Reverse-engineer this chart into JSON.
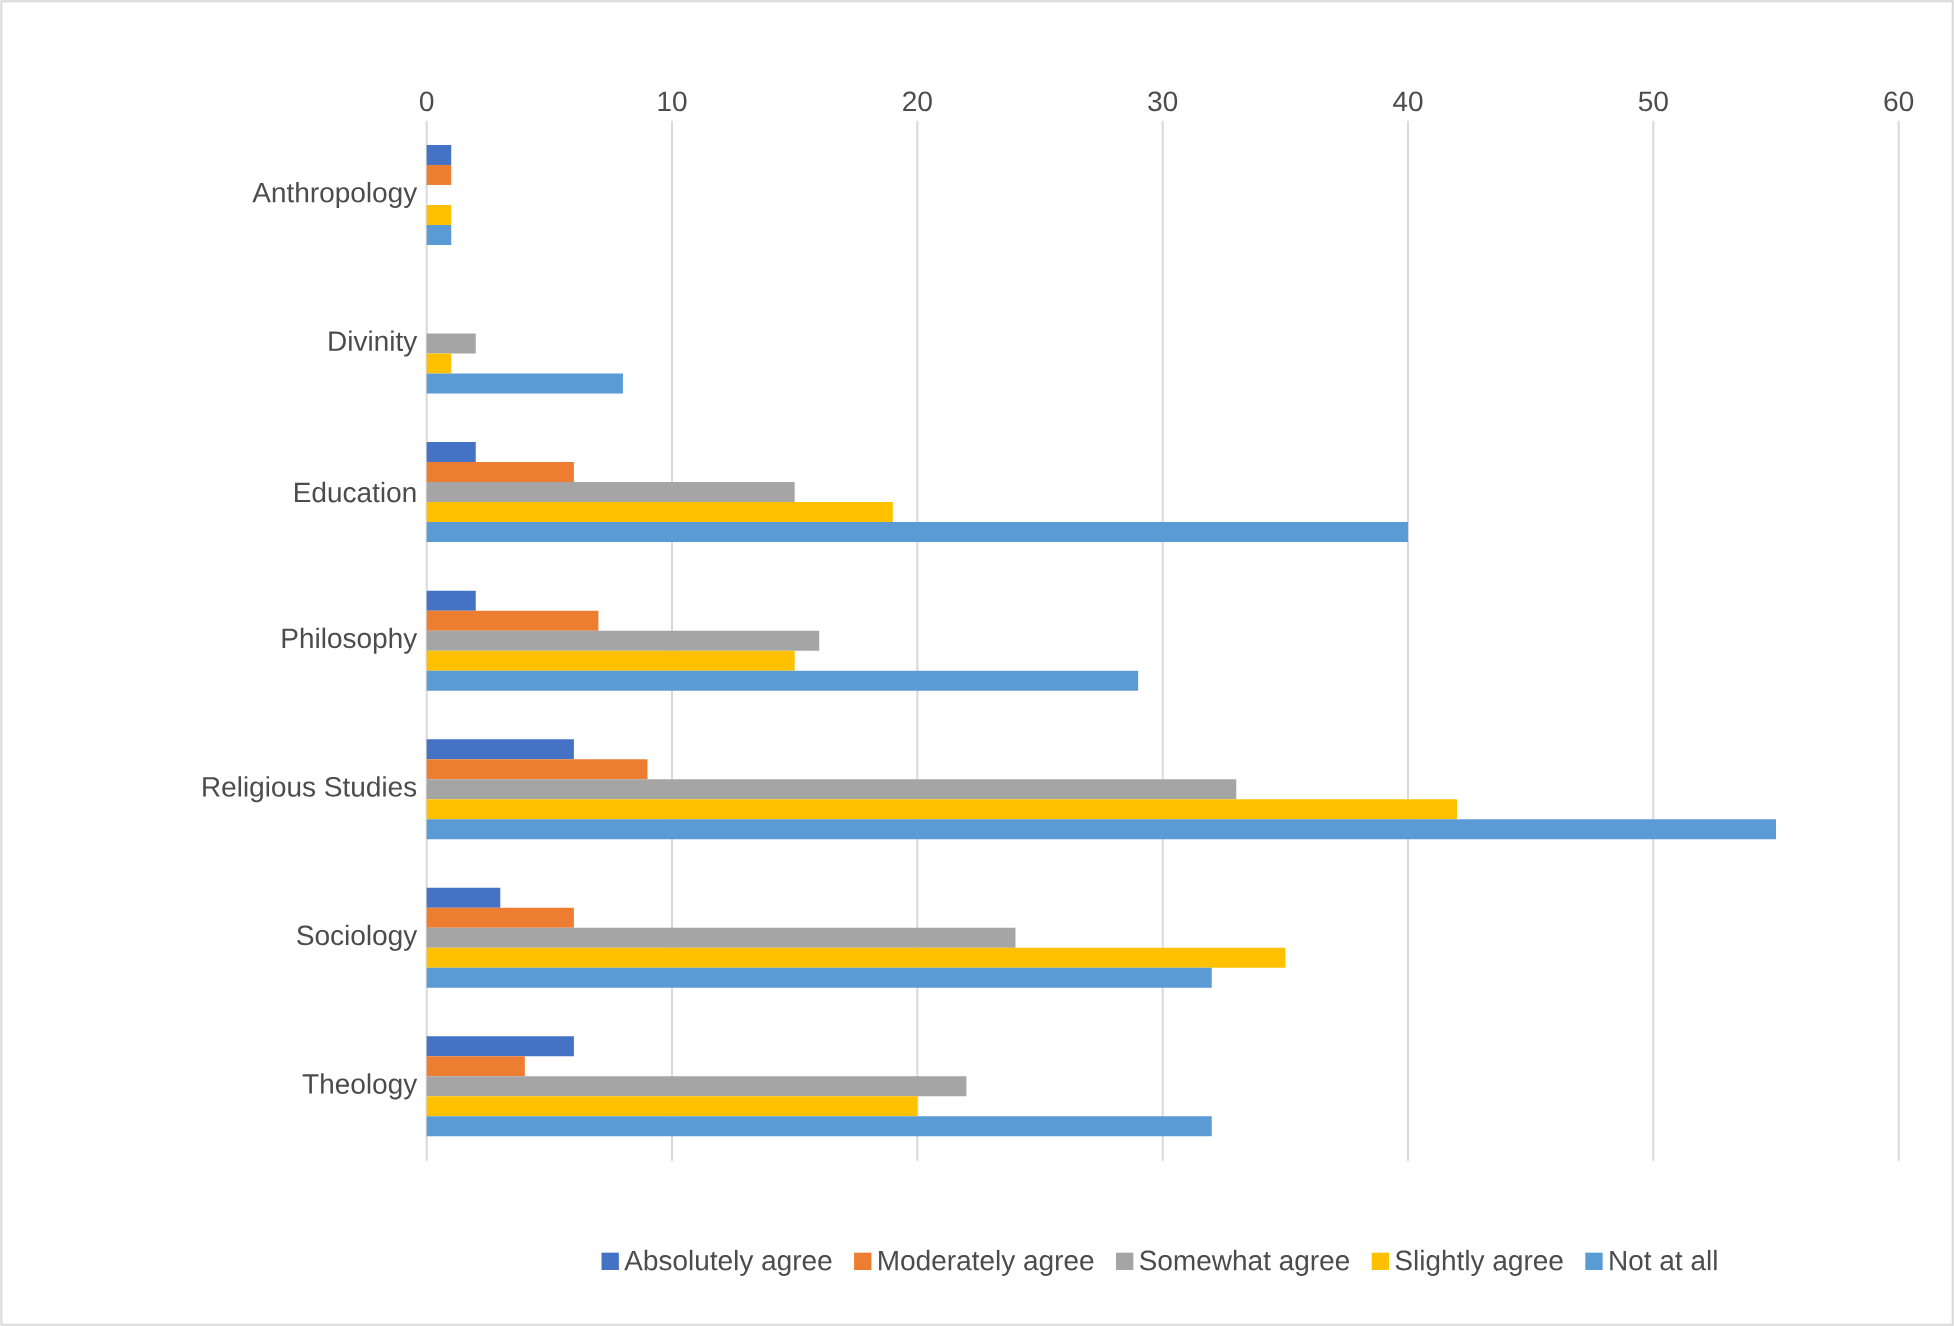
{
  "chart_data": {
    "type": "bar",
    "orientation": "horizontal",
    "categories": [
      "Anthropology",
      "Divinity",
      "Education",
      "Philosophy",
      "Religious Studies",
      "Sociology",
      "Theology"
    ],
    "series": [
      {
        "name": "Absolutely agree",
        "color": "#4472c4",
        "values": [
          1,
          0,
          2,
          2,
          6,
          3,
          6
        ]
      },
      {
        "name": "Moderately agree",
        "color": "#ed7d31",
        "values": [
          1,
          0,
          6,
          7,
          9,
          6,
          4
        ]
      },
      {
        "name": "Somewhat agree",
        "color": "#a5a5a5",
        "values": [
          0,
          2,
          15,
          16,
          33,
          24,
          22
        ]
      },
      {
        "name": "Slightly agree",
        "color": "#ffc000",
        "values": [
          1,
          1,
          19,
          15,
          42,
          35,
          20
        ]
      },
      {
        "name": "Not at all",
        "color": "#5b9bd5",
        "values": [
          1,
          8,
          40,
          29,
          55,
          32,
          32
        ]
      }
    ],
    "xlim": [
      0,
      60
    ],
    "xticks": [
      0,
      10,
      20,
      30,
      40,
      50,
      60
    ],
    "grid": "x",
    "legend": "bottom"
  }
}
